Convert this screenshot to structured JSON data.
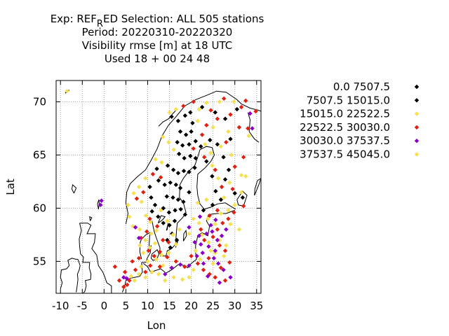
{
  "chart_data": {
    "type": "scatter",
    "title_lines": [
      {
        "prefix": "Exp: REF",
        "subscript": "R",
        "rest": "ED   Selection: ALL    505 stations"
      },
      {
        "text": "Period: 20220310-20220320"
      },
      {
        "text": "Visibility rmse [m] at  18 UTC"
      },
      {
        "text": "Used  18 + 00 24 48"
      }
    ],
    "xlabel": "Lon",
    "ylabel": "Lat",
    "xlim": [
      -11,
      36
    ],
    "ylim": [
      52,
      72
    ],
    "xticks": [
      -10,
      -5,
      0,
      5,
      10,
      15,
      20,
      25,
      30,
      35
    ],
    "yticks": [
      55,
      60,
      65,
      70
    ],
    "grid": true,
    "legend_position": "right",
    "legend": [
      {
        "label": "0.0 7507.5",
        "color": "#000000"
      },
      {
        "label": "7507.5 15015.0",
        "color": "#000000"
      },
      {
        "label": "15015.0 22522.5",
        "color": "#f5e050"
      },
      {
        "label": "22522.5 30030.0",
        "color": "#e02010"
      },
      {
        "label": "30030.0 37537.5",
        "color": "#8a00c8"
      },
      {
        "label": "37537.5 45045.0",
        "color": "#f5e050"
      }
    ],
    "series": [
      {
        "color": "#000000",
        "points": [
          [
            15.5,
            68.6
          ],
          [
            17.0,
            68.2
          ],
          [
            18.6,
            68.7
          ],
          [
            19.8,
            69.0
          ],
          [
            20.3,
            68.0
          ],
          [
            17.5,
            67.2
          ],
          [
            18.8,
            66.9
          ],
          [
            20.0,
            67.2
          ],
          [
            16.8,
            66.2
          ],
          [
            18.0,
            65.9
          ],
          [
            19.5,
            66.0
          ],
          [
            21.0,
            66.3
          ],
          [
            22.2,
            65.8
          ],
          [
            17.2,
            65.1
          ],
          [
            18.4,
            64.7
          ],
          [
            19.8,
            64.9
          ],
          [
            21.0,
            64.7
          ],
          [
            14.6,
            64.0
          ],
          [
            15.9,
            63.6
          ],
          [
            17.0,
            63.3
          ],
          [
            18.3,
            63.5
          ],
          [
            19.5,
            63.4
          ],
          [
            20.8,
            63.8
          ],
          [
            12.5,
            62.6
          ],
          [
            13.9,
            62.2
          ],
          [
            15.2,
            62.4
          ],
          [
            16.5,
            62.2
          ],
          [
            17.5,
            61.9
          ],
          [
            14.4,
            61.1
          ],
          [
            15.8,
            61.0
          ],
          [
            17.0,
            60.8
          ],
          [
            18.2,
            60.6
          ],
          [
            19.5,
            61.5
          ],
          [
            13.6,
            60.0
          ],
          [
            14.9,
            59.6
          ],
          [
            16.3,
            59.8
          ],
          [
            17.6,
            59.9
          ],
          [
            18.6,
            59.4
          ],
          [
            12.4,
            59.2
          ],
          [
            13.6,
            58.6
          ],
          [
            15.0,
            58.4
          ],
          [
            16.2,
            58.8
          ],
          [
            15.6,
            57.6
          ],
          [
            14.5,
            57.0
          ],
          [
            16.7,
            57.0
          ],
          [
            15.2,
            56.3
          ],
          [
            10.8,
            61.0
          ],
          [
            11.7,
            60.3
          ],
          [
            11.0,
            59.7
          ],
          [
            12.1,
            63.7
          ],
          [
            10.5,
            62.0
          ],
          [
            23.5,
            64.4
          ],
          [
            24.8,
            63.0
          ],
          [
            25.6,
            61.6
          ],
          [
            26.8,
            60.8
          ],
          [
            27.8,
            62.7
          ],
          [
            28.6,
            63.6
          ],
          [
            30.0,
            61.4
          ],
          [
            31.8,
            61.0
          ],
          [
            24.3,
            66.4
          ],
          [
            26.0,
            66.0
          ],
          [
            27.4,
            64.8
          ],
          [
            24.9,
            60.3
          ],
          [
            22.8,
            59.8
          ],
          [
            22.5,
            69.5
          ],
          [
            25.5,
            69.0
          ],
          [
            27.8,
            68.4
          ],
          [
            30.5,
            69.3
          ],
          [
            29.0,
            66.5
          ]
        ]
      },
      {
        "color": "#f5e050",
        "points": [
          [
            -8.5,
            71.0
          ],
          [
            15.0,
            69.0
          ],
          [
            16.5,
            69.3
          ],
          [
            21.8,
            69.3
          ],
          [
            23.5,
            69.9
          ],
          [
            26.5,
            70.0
          ],
          [
            29.8,
            70.0
          ],
          [
            21.5,
            68.2
          ],
          [
            25.0,
            67.6
          ],
          [
            28.5,
            67.2
          ],
          [
            13.5,
            66.7
          ],
          [
            14.8,
            66.2
          ],
          [
            16.0,
            65.5
          ],
          [
            23.2,
            66.0
          ],
          [
            24.5,
            65.2
          ],
          [
            26.8,
            65.8
          ],
          [
            29.2,
            65.0
          ],
          [
            33.2,
            66.8
          ],
          [
            11.8,
            64.6
          ],
          [
            13.2,
            64.3
          ],
          [
            24.8,
            64.0
          ],
          [
            26.2,
            62.8
          ],
          [
            28.8,
            62.4
          ],
          [
            31.5,
            63.1
          ],
          [
            9.5,
            62.8
          ],
          [
            8.0,
            62.0
          ],
          [
            6.8,
            61.4
          ],
          [
            5.5,
            60.3
          ],
          [
            5.8,
            59.2
          ],
          [
            6.6,
            58.3
          ],
          [
            8.2,
            58.0
          ],
          [
            9.6,
            59.3
          ],
          [
            8.6,
            60.6
          ],
          [
            10.6,
            58.7
          ],
          [
            12.0,
            57.9
          ],
          [
            11.7,
            56.7
          ],
          [
            13.2,
            55.6
          ],
          [
            14.8,
            55.8
          ],
          [
            16.5,
            56.6
          ],
          [
            17.3,
            58.0
          ],
          [
            19.5,
            57.6
          ],
          [
            21.0,
            56.0
          ],
          [
            22.5,
            57.5
          ],
          [
            24.0,
            56.8
          ],
          [
            25.5,
            58.5
          ],
          [
            23.8,
            59.0
          ],
          [
            26.8,
            59.5
          ],
          [
            28.5,
            59.8
          ],
          [
            30.0,
            60.3
          ],
          [
            31.5,
            61.5
          ],
          [
            32.5,
            63.0
          ],
          [
            27.5,
            55.5
          ],
          [
            25.0,
            54.8
          ],
          [
            24.5,
            56.0
          ],
          [
            22.0,
            55.2
          ],
          [
            20.5,
            54.2
          ],
          [
            19.5,
            53.5
          ],
          [
            18.0,
            53.3
          ],
          [
            16.0,
            53.5
          ],
          [
            14.0,
            53.2
          ],
          [
            12.5,
            53.8
          ],
          [
            11.0,
            54.0
          ],
          [
            9.5,
            53.5
          ],
          [
            8.0,
            53.8
          ],
          [
            7.0,
            53.2
          ],
          [
            8.5,
            54.5
          ],
          [
            10.0,
            55.0
          ],
          [
            12.0,
            55.2
          ],
          [
            9.0,
            55.8
          ],
          [
            10.5,
            56.3
          ],
          [
            9.5,
            57.0
          ],
          [
            10.8,
            57.6
          ],
          [
            13.5,
            54.6
          ],
          [
            8.2,
            56.5
          ],
          [
            6.2,
            53.6
          ],
          [
            14.5,
            58.8
          ],
          [
            15.8,
            57.5
          ],
          [
            13.0,
            59.8
          ],
          [
            21.5,
            60.5
          ],
          [
            20.5,
            59.0
          ],
          [
            23.5,
            60.8
          ],
          [
            27.5,
            61.0
          ],
          [
            29.0,
            58.5
          ],
          [
            31.0,
            58.0
          ],
          [
            26.5,
            57.0
          ],
          [
            28.0,
            56.5
          ],
          [
            25.5,
            55.8
          ],
          [
            21.8,
            58.6
          ]
        ]
      },
      {
        "color": "#e02010",
        "points": [
          [
            18.2,
            69.6
          ],
          [
            20.5,
            70.0
          ],
          [
            24.5,
            69.2
          ],
          [
            27.5,
            70.3
          ],
          [
            29.0,
            68.8
          ],
          [
            31.5,
            69.5
          ],
          [
            32.5,
            70.1
          ],
          [
            34.8,
            69.1
          ],
          [
            33.0,
            67.5
          ],
          [
            31.0,
            67.6
          ],
          [
            23.5,
            67.8
          ],
          [
            26.0,
            68.4
          ],
          [
            22.5,
            66.9
          ],
          [
            28.0,
            66.2
          ],
          [
            20.5,
            65.6
          ],
          [
            23.0,
            64.8
          ],
          [
            25.5,
            63.6
          ],
          [
            30.0,
            63.9
          ],
          [
            32.0,
            64.8
          ],
          [
            27.0,
            62.0
          ],
          [
            29.5,
            61.8
          ],
          [
            32.0,
            60.2
          ],
          [
            26.0,
            59.8
          ],
          [
            24.2,
            59.3
          ],
          [
            11.2,
            63.2
          ],
          [
            13.0,
            62.9
          ],
          [
            9.0,
            61.5
          ],
          [
            7.5,
            60.9
          ],
          [
            10.5,
            59.0
          ],
          [
            12.2,
            58.3
          ],
          [
            9.8,
            57.8
          ],
          [
            8.5,
            57.2
          ],
          [
            10.2,
            56.0
          ],
          [
            11.5,
            55.5
          ],
          [
            12.8,
            55.9
          ],
          [
            14.5,
            55.4
          ],
          [
            16.5,
            55.0
          ],
          [
            18.5,
            54.5
          ],
          [
            20.0,
            55.5
          ],
          [
            21.5,
            54.8
          ],
          [
            22.8,
            54.2
          ],
          [
            24.2,
            53.8
          ],
          [
            25.5,
            53.5
          ],
          [
            26.8,
            54.4
          ],
          [
            27.8,
            53.2
          ],
          [
            28.8,
            54.9
          ],
          [
            27.8,
            56.0
          ],
          [
            26.5,
            56.5
          ],
          [
            24.0,
            55.3
          ],
          [
            23.0,
            57.0
          ],
          [
            25.0,
            57.3
          ],
          [
            26.0,
            58.0
          ],
          [
            27.2,
            58.6
          ],
          [
            28.5,
            59.0
          ],
          [
            29.8,
            59.6
          ],
          [
            22.2,
            58.0
          ],
          [
            10.6,
            54.6
          ],
          [
            9.5,
            54.0
          ],
          [
            8.0,
            55.3
          ],
          [
            7.2,
            54.2
          ],
          [
            5.8,
            53.2
          ],
          [
            5.3,
            52.8
          ],
          [
            4.5,
            52.6
          ],
          [
            3.5,
            53.2
          ],
          [
            2.5,
            54.5
          ],
          [
            4.8,
            54.0
          ],
          [
            6.5,
            55.0
          ],
          [
            13.5,
            57.0
          ],
          [
            14.8,
            56.8
          ],
          [
            12.8,
            54.5
          ]
        ]
      },
      {
        "color": "#8a00c8",
        "points": [
          [
            -0.6,
            60.7
          ],
          [
            -0.8,
            60.3
          ],
          [
            7.2,
            58.2
          ],
          [
            8.0,
            57.2
          ],
          [
            5.2,
            53.4
          ],
          [
            4.5,
            53.5
          ],
          [
            14.0,
            53.8
          ],
          [
            15.5,
            54.4
          ],
          [
            17.5,
            54.7
          ],
          [
            19.5,
            54.6
          ],
          [
            21.3,
            55.5
          ],
          [
            22.6,
            55.8
          ],
          [
            24.0,
            56.4
          ],
          [
            25.2,
            55.3
          ],
          [
            26.2,
            54.8
          ],
          [
            27.4,
            54.2
          ],
          [
            23.5,
            57.6
          ],
          [
            22.2,
            56.6
          ],
          [
            21.8,
            57.4
          ],
          [
            24.8,
            57.8
          ],
          [
            26.0,
            57.0
          ],
          [
            25.5,
            56.0
          ],
          [
            24.5,
            58.4
          ],
          [
            25.6,
            58.9
          ],
          [
            27.0,
            57.4
          ],
          [
            28.0,
            58.0
          ],
          [
            22.8,
            54.8
          ],
          [
            23.8,
            53.6
          ],
          [
            26.5,
            53.0
          ],
          [
            29.0,
            53.5
          ],
          [
            33.5,
            68.9
          ],
          [
            34.0,
            67.5
          ],
          [
            19.5,
            58.2
          ],
          [
            20.8,
            56.8
          ],
          [
            22.0,
            59.2
          ]
        ]
      }
    ]
  }
}
